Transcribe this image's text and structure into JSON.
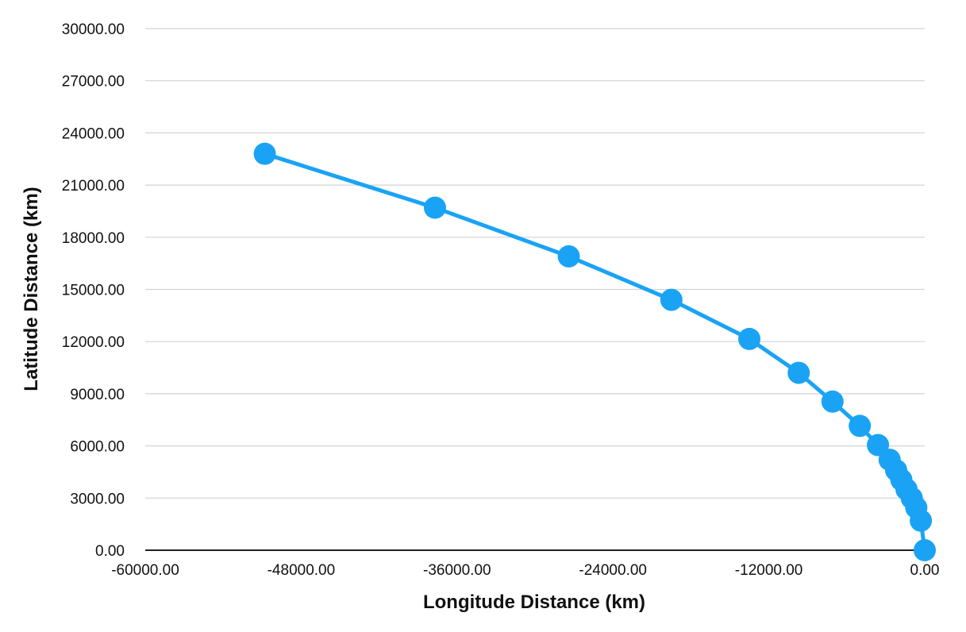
{
  "chart_data": {
    "type": "scatter",
    "title": "",
    "xlabel": "Longitude Distance (km)",
    "ylabel": "Latitude Distance (km)",
    "xlim": [
      -60000,
      0
    ],
    "ylim": [
      0,
      30000
    ],
    "x_ticks": [
      -60000,
      -48000,
      -36000,
      -24000,
      -12000,
      0
    ],
    "y_ticks": [
      0,
      3000,
      6000,
      9000,
      12000,
      15000,
      18000,
      21000,
      24000,
      27000,
      30000
    ],
    "x_tick_labels": [
      "-60000.00",
      "-48000.00",
      "-36000.00",
      "-24000.00",
      "-12000.00",
      "0.00"
    ],
    "y_tick_labels": [
      "0.00",
      "3000.00",
      "6000.00",
      "9000.00",
      "12000.00",
      "15000.00",
      "18000.00",
      "21000.00",
      "24000.00",
      "27000.00",
      "30000.00"
    ],
    "grid": true,
    "legend": "none",
    "connected": true,
    "series": [
      {
        "color": "#1aa3f5",
        "points": [
          [
            -50800,
            22800
          ],
          [
            -37700,
            19700
          ],
          [
            -27400,
            16900
          ],
          [
            -19500,
            14400
          ],
          [
            -13500,
            12150
          ],
          [
            -9700,
            10200
          ],
          [
            -7100,
            8550
          ],
          [
            -5000,
            7150
          ],
          [
            -3600,
            6050
          ],
          [
            -2700,
            5200
          ],
          [
            -2200,
            4600
          ],
          [
            -1800,
            4050
          ],
          [
            -1400,
            3500
          ],
          [
            -1000,
            3000
          ],
          [
            -650,
            2450
          ],
          [
            -300,
            1700
          ],
          [
            0,
            0
          ]
        ]
      }
    ]
  }
}
